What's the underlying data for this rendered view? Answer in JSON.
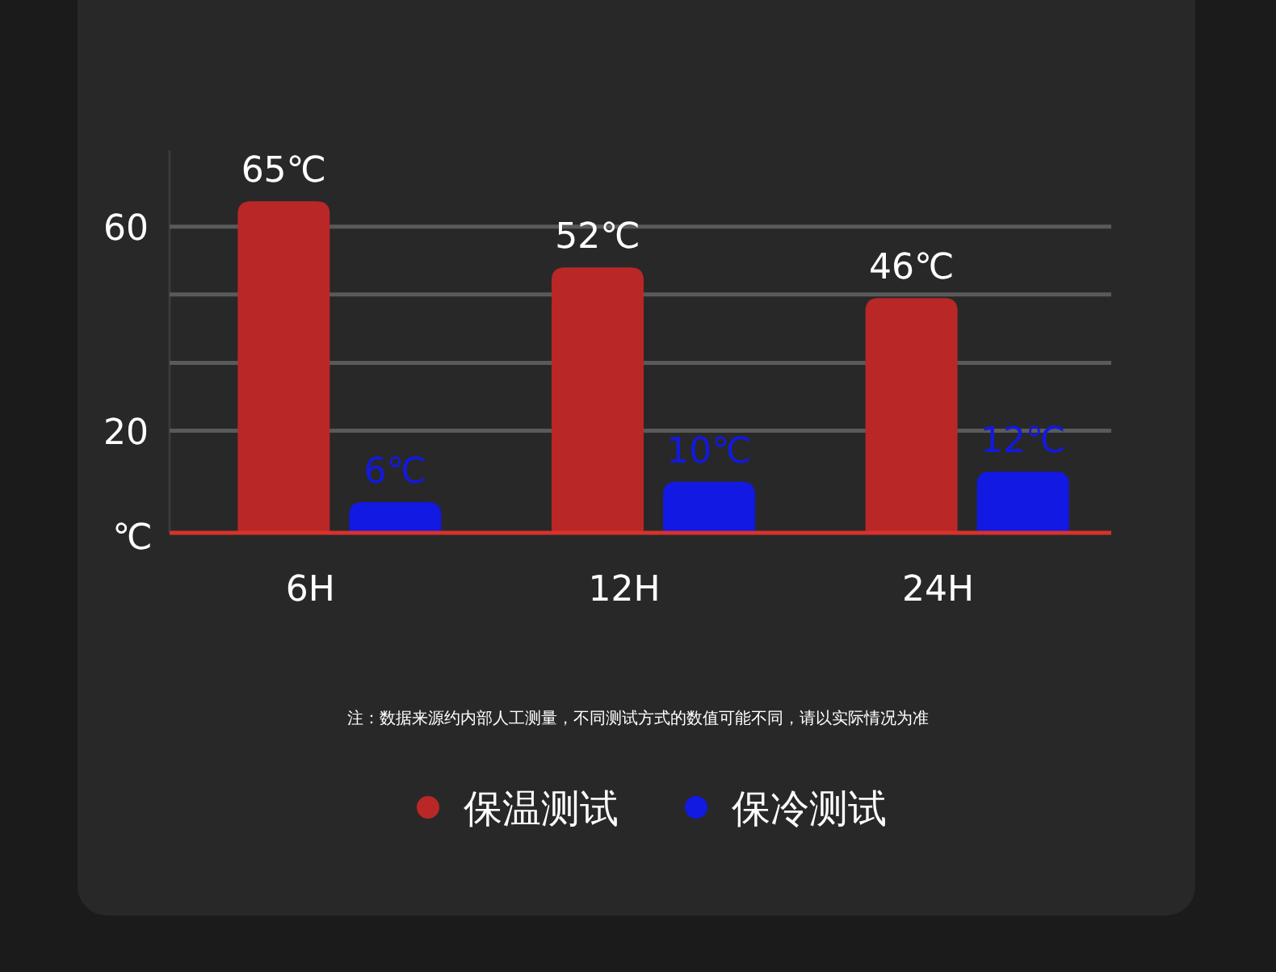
{
  "chart_data": {
    "type": "bar",
    "categories": [
      "6H",
      "12H",
      "24H"
    ],
    "series": [
      {
        "name": "保温测试",
        "color": "#b92727",
        "values": [
          65,
          52,
          46
        ],
        "value_labels": [
          "65℃",
          "52℃",
          "46℃"
        ]
      },
      {
        "name": "保冷测试",
        "color": "#1219e2",
        "values": [
          6,
          10,
          12
        ],
        "value_labels": [
          "6℃",
          "10℃",
          "12℃"
        ]
      }
    ],
    "ylabel": "℃",
    "ylim": [
      0,
      75
    ],
    "yticks": [
      20,
      {
        "value": 33.3,
        "label": null
      },
      {
        "value": 46.7,
        "label": null
      },
      60
    ],
    "grid": "y",
    "legend": "bottom",
    "annotations": [
      "注：数据来源约内部人工测量，不同测试方式的数值可能不同，请以实际情况为准"
    ]
  }
}
